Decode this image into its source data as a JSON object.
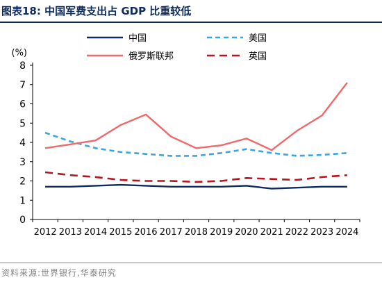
{
  "header": {
    "title": "图表18:  中国军费支出占 GDP 比重较低"
  },
  "footer": {
    "source": "资料来源:世界银行,华泰研究"
  },
  "chart_data": {
    "type": "line",
    "title": "中国军费支出占 GDP 比重较低",
    "ylabel": "(%)",
    "xlabel": "",
    "ylim": [
      0,
      8
    ],
    "yticks": [
      "0",
      "1",
      "2",
      "3",
      "4",
      "5",
      "6",
      "7",
      "8"
    ],
    "x": [
      "2012",
      "2013",
      "2014",
      "2015",
      "2016",
      "2017",
      "2018",
      "2019",
      "2020",
      "2021",
      "2022",
      "2023",
      "2024"
    ],
    "grid": false,
    "legend_position": "top",
    "series": [
      {
        "name": "中国",
        "color": "#0d2b5e",
        "style": "solid",
        "values": [
          1.7,
          1.7,
          1.75,
          1.8,
          1.75,
          1.7,
          1.7,
          1.7,
          1.75,
          1.6,
          1.65,
          1.7,
          1.7
        ]
      },
      {
        "name": "美国",
        "color": "#3aa6dd",
        "style": "dashed",
        "values": [
          4.5,
          4.05,
          3.7,
          3.5,
          3.4,
          3.3,
          3.3,
          3.45,
          3.65,
          3.45,
          3.3,
          3.35,
          3.45
        ]
      },
      {
        "name": "俄罗斯联邦",
        "color": "#f0686a",
        "style": "solid",
        "values": [
          3.7,
          3.9,
          4.1,
          4.9,
          5.45,
          4.3,
          3.7,
          3.85,
          4.2,
          3.6,
          4.6,
          5.4,
          7.1
        ]
      },
      {
        "name": "英国",
        "color": "#b8141b",
        "style": "dashed",
        "values": [
          2.45,
          2.3,
          2.2,
          2.05,
          2.0,
          2.0,
          1.95,
          2.0,
          2.15,
          2.1,
          2.05,
          2.2,
          2.3
        ]
      }
    ]
  }
}
